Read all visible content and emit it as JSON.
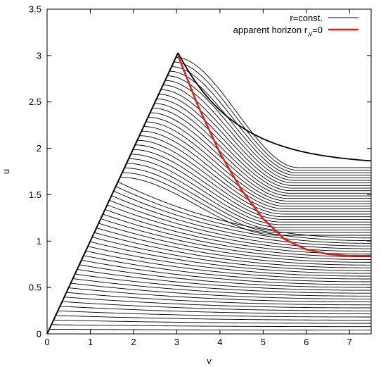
{
  "chart_data": {
    "type": "line",
    "xlabel": "v",
    "ylabel": "u",
    "xlim": [
      0,
      7.5
    ],
    "ylim": [
      0,
      3.5
    ],
    "x_ticks": [
      "0",
      "1",
      "2",
      "3",
      "4",
      "5",
      "6",
      "7"
    ],
    "y_ticks": [
      "0",
      "0.5",
      "1",
      "1.5",
      "2",
      "2.5",
      "3",
      "3.5"
    ],
    "grid": false,
    "legend_position": "top-right",
    "legend": [
      {
        "label": "r=const.",
        "color": "#000000"
      },
      {
        "label_main": "apparent horizon r",
        "label_sub": ",v",
        "label_tail": "=0",
        "color": "#e0201c"
      }
    ],
    "series": [
      {
        "role": "boundary",
        "color": "#000000",
        "x": [
          0,
          3.03
        ],
        "y": [
          0,
          3.03
        ]
      },
      {
        "role": "apparent-horizon",
        "color": "#e0201c",
        "x": [
          3.03,
          3.5,
          4.0,
          4.5,
          5.0,
          5.5,
          6.0,
          6.5,
          7.0,
          7.5
        ],
        "y": [
          3.0,
          2.45,
          1.95,
          1.55,
          1.24,
          1.02,
          0.91,
          0.86,
          0.84,
          0.84
        ]
      }
    ],
    "families": [
      {
        "role": "r-const-curves",
        "color": "#000000",
        "count": 60,
        "start_line": "u = v",
        "apex_v": 3.03,
        "asymptote_u_at_right_edge": [
          0.0,
          1.82
        ]
      }
    ]
  }
}
